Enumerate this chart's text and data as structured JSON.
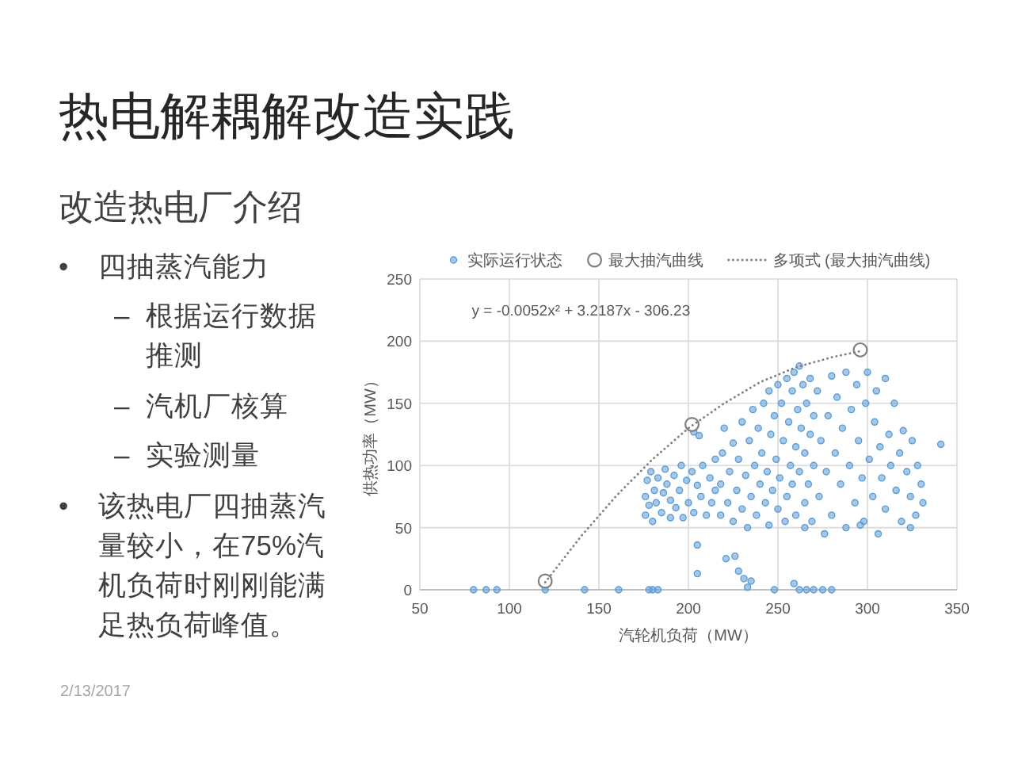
{
  "chart_data": {
    "type": "scatter",
    "title": "热电解耦解改造实践",
    "subtitle": "改造热电厂介绍",
    "xlabel": "汽轮机负荷（MW）",
    "ylabel": "供热功率（MW）",
    "xlim": [
      50,
      350
    ],
    "ylim": [
      0,
      250
    ],
    "xticks": [
      50,
      100,
      150,
      200,
      250,
      300,
      350
    ],
    "yticks": [
      0,
      50,
      100,
      150,
      200,
      250
    ],
    "grid": true,
    "legend": "top",
    "series": [
      {
        "name": "实际运行状态",
        "marker": "circle",
        "color": "#5b9bd5",
        "x": [
          80,
          87,
          93,
          120,
          142,
          161,
          178,
          180,
          183,
          176,
          176,
          177,
          178,
          179,
          180,
          181,
          182,
          183,
          185,
          186,
          187,
          188,
          190,
          190,
          192,
          193,
          195,
          196,
          197,
          199,
          200,
          202,
          203,
          205,
          207,
          208,
          210,
          212,
          213,
          215,
          215,
          203,
          206,
          205,
          205,
          218,
          218,
          219,
          220,
          222,
          223,
          225,
          225,
          227,
          228,
          230,
          230,
          232,
          233,
          234,
          235,
          236,
          237,
          238,
          239,
          240,
          241,
          242,
          243,
          244,
          245,
          245,
          246,
          247,
          248,
          249,
          250,
          250,
          251,
          252,
          253,
          254,
          255,
          255,
          256,
          257,
          258,
          258,
          259,
          260,
          260,
          261,
          262,
          262,
          263,
          264,
          265,
          265,
          266,
          267,
          268,
          268,
          269,
          270,
          270,
          272,
          273,
          274,
          276,
          277,
          278,
          280,
          280,
          282,
          283,
          285,
          286,
          288,
          288,
          290,
          291,
          293,
          294,
          295,
          297,
          298,
          299,
          300,
          301,
          303,
          304,
          305,
          306,
          307,
          308,
          310,
          310,
          312,
          313,
          315,
          316,
          318,
          319,
          320,
          322,
          324,
          325,
          327,
          328,
          330,
          331,
          265,
          296,
          324,
          341,
          221,
          226,
          228,
          231,
          235,
          233,
          248,
          259,
          262,
          266,
          270,
          275,
          280
        ],
        "values": [
          0,
          0,
          0,
          0,
          0,
          0,
          0,
          0,
          0,
          60,
          75,
          88,
          68,
          95,
          55,
          80,
          70,
          90,
          62,
          78,
          97,
          85,
          58,
          72,
          92,
          66,
          80,
          100,
          58,
          88,
          70,
          95,
          62,
          84,
          75,
          100,
          60,
          90,
          70,
          105,
          80,
          127,
          124,
          36,
          13,
          60,
          85,
          110,
          130,
          70,
          95,
          55,
          118,
          80,
          105,
          65,
          135,
          92,
          50,
          120,
          75,
          145,
          100,
          60,
          130,
          85,
          110,
          150,
          70,
          95,
          160,
          52,
          125,
          80,
          140,
          105,
          65,
          165,
          90,
          150,
          120,
          55,
          170,
          75,
          135,
          100,
          160,
          85,
          175,
          115,
          60,
          145,
          180,
          95,
          130,
          165,
          70,
          110,
          150,
          85,
          125,
          170,
          55,
          100,
          140,
          160,
          75,
          120,
          45,
          95,
          140,
          172,
          60,
          110,
          155,
          85,
          130,
          175,
          50,
          100,
          145,
          70,
          165,
          120,
          90,
          55,
          150,
          175,
          105,
          75,
          135,
          160,
          45,
          115,
          90,
          170,
          65,
          125,
          100,
          150,
          80,
          110,
          55,
          128,
          95,
          75,
          120,
          60,
          100,
          85,
          70,
          50,
          52,
          50,
          117,
          25,
          27,
          15,
          9,
          7,
          2,
          0,
          5,
          0,
          0,
          0,
          0,
          0
        ]
      },
      {
        "name": "最大抽汽曲线",
        "marker": "circle",
        "color": "#7f7f7f",
        "x": [
          120,
          202,
          296
        ],
        "values": [
          7,
          133,
          193
        ]
      },
      {
        "name": "多项式 (最大抽汽曲线)",
        "type": "line",
        "line_style": "dotted",
        "color": "#7f7f7f",
        "x": [
          120,
          140,
          160,
          180,
          200,
          220,
          240,
          260,
          280,
          296
        ],
        "values": [
          6,
          43,
          76,
          105,
          130,
          150,
          167,
          179,
          187,
          192
        ]
      }
    ],
    "annotations": [
      "• 四抽蒸汽能力",
      "– 根据运行数据推测",
      "– 汽机厂核算",
      "– 实验测量",
      "• 该热电厂四抽蒸汽量较小，在75%汽机负荷时刚刚能满足热负荷峰值。",
      "2/13/2017",
      "y = -0.0052x² + 3.2187x - 306.23"
    ]
  }
}
